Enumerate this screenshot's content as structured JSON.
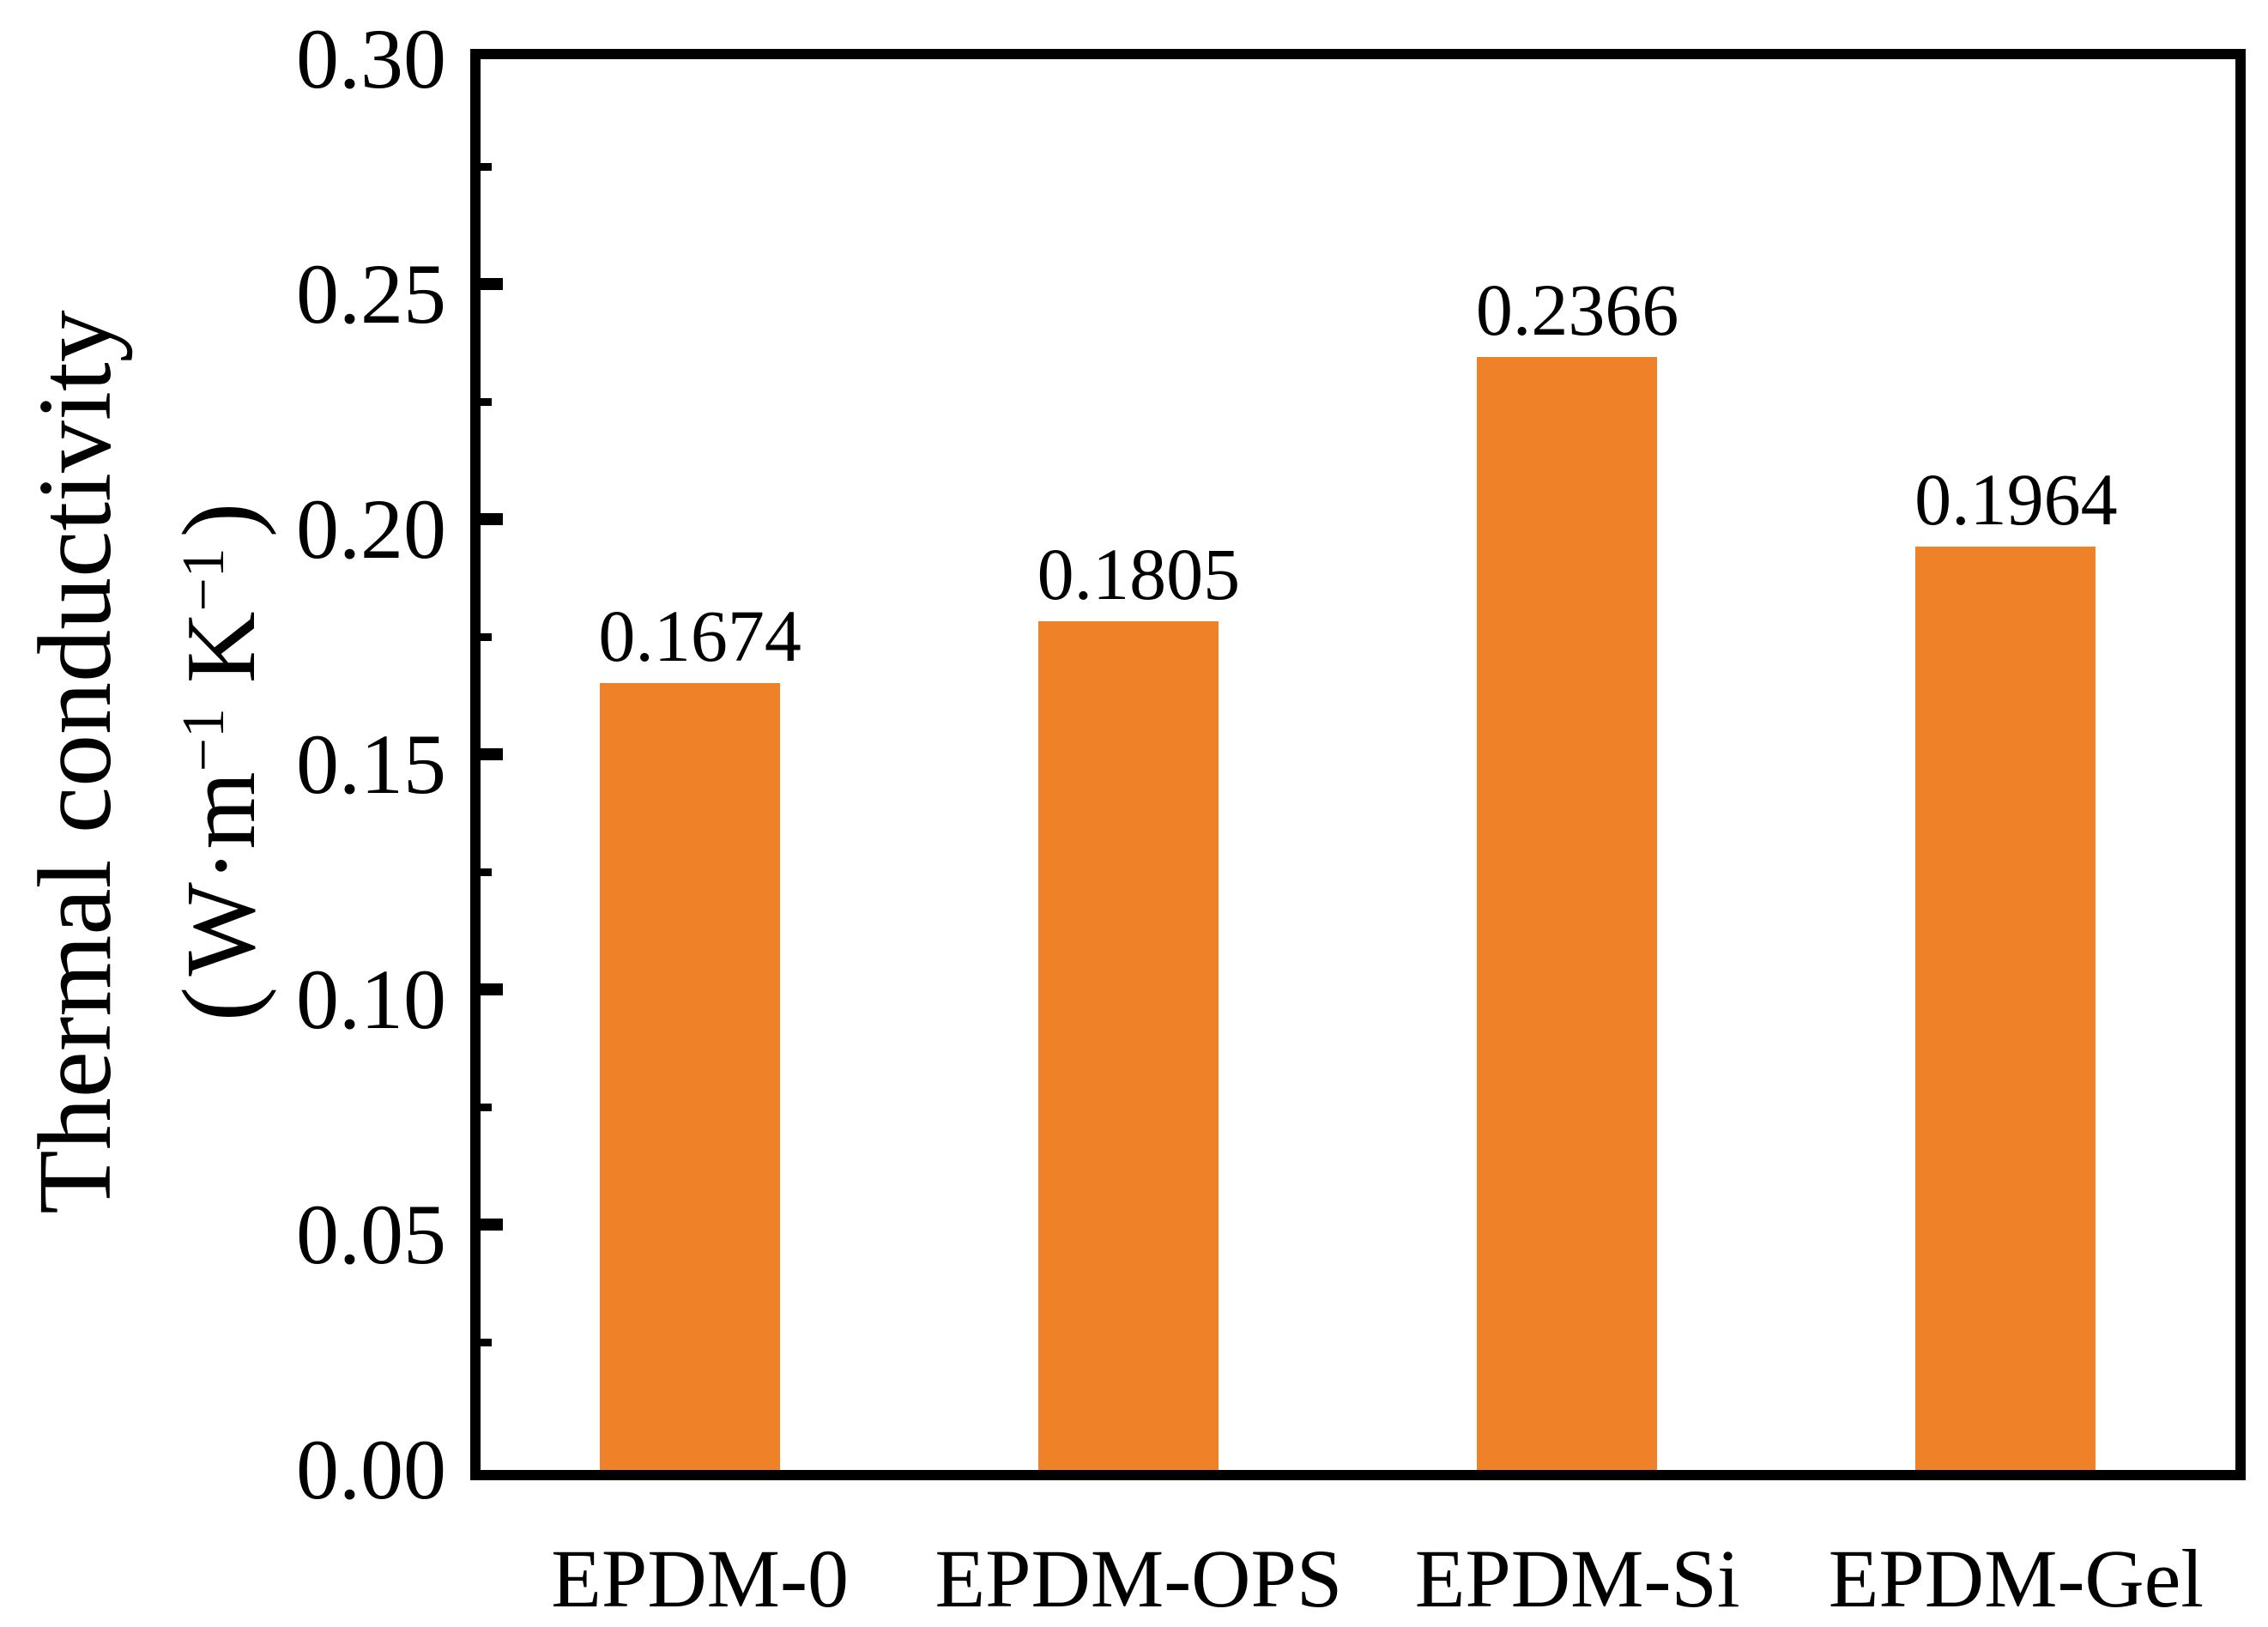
{
  "figure": {
    "background_color": "#ffffff",
    "text_color": "#000000"
  },
  "chart_data": {
    "type": "bar",
    "title": "",
    "categories": [
      "EPDM-0",
      "EPDM-OPS",
      "EPDM-Si",
      "EPDM-Gel"
    ],
    "values": [
      0.1674,
      0.1805,
      0.2366,
      0.1964
    ],
    "value_labels": [
      "0.1674",
      "0.1805",
      "0.2366",
      "0.1964"
    ],
    "series": [
      {
        "name": "Thermal conductivity",
        "values": [
          0.1674,
          0.1805,
          0.2366,
          0.1964
        ]
      }
    ],
    "bar_color": "#EF8228",
    "axis_color": "#000000",
    "grid": "off",
    "legend": "none",
    "xlabel": "",
    "ylabel_line1": "Thermal conductivity",
    "ylabel_unit_parts": {
      "open": "(",
      "base1": "W·m",
      "sup1": "−1",
      "base2": " K",
      "sup2": "−1",
      "close": ")"
    },
    "y_axis": {
      "min": 0.0,
      "max": 0.3,
      "major_step": 0.05,
      "minor_step": 0.025,
      "tick_labels": [
        "0.00",
        "0.05",
        "0.10",
        "0.15",
        "0.20",
        "0.25",
        "0.30"
      ]
    }
  }
}
